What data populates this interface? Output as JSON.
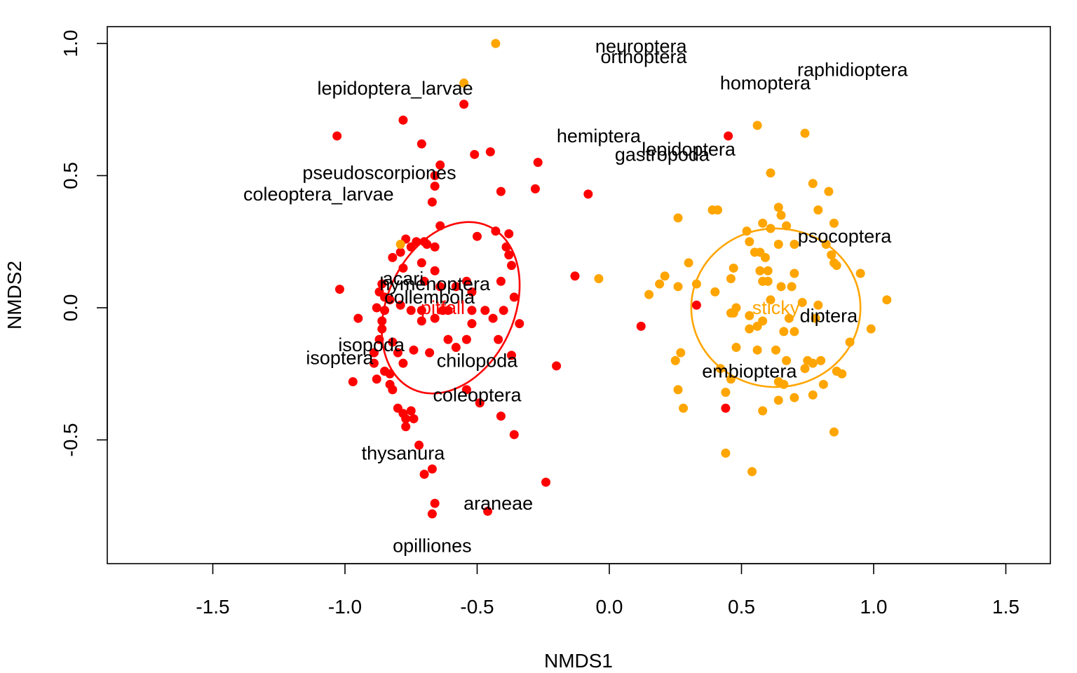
{
  "chart_data": {
    "type": "scatter",
    "xlabel": "NMDS1",
    "ylabel": "NMDS2",
    "xlim": [
      -1.9,
      1.7
    ],
    "ylim": [
      -0.97,
      1.07
    ],
    "x_ticks": [
      -1.5,
      -1.0,
      -0.5,
      0.0,
      0.5,
      1.0,
      1.5
    ],
    "x_tick_labels": [
      "-1.5",
      "-1.0",
      "-0.5",
      "0.0",
      "0.5",
      "1.0",
      "1.5"
    ],
    "y_ticks": [
      -0.5,
      0.0,
      0.5,
      1.0
    ],
    "y_tick_labels": [
      "-0.5",
      "0.0",
      "0.5",
      "1.0"
    ],
    "grid": false,
    "groups": [
      {
        "name": "pitfall",
        "color": "#ff0000",
        "centroid": [
          -0.7,
          0.0
        ],
        "ellipse": {
          "center": [
            -0.6,
            0.0
          ],
          "rx": 0.24,
          "ry": 0.34,
          "rotation_deg": 25
        }
      },
      {
        "name": "sticky",
        "color": "#ffa500",
        "centroid": [
          0.63,
          0.0
        ],
        "ellipse": {
          "center": [
            0.63,
            0.0
          ],
          "rx": 0.32,
          "ry": 0.3,
          "rotation_deg": 0
        }
      }
    ],
    "series": [
      {
        "name": "pitfall",
        "color": "#ff0000",
        "points": [
          [
            -1.03,
            0.65
          ],
          [
            -0.78,
            0.71
          ],
          [
            -0.55,
            0.77
          ],
          [
            -0.71,
            0.62
          ],
          [
            -0.51,
            0.58
          ],
          [
            -0.45,
            0.59
          ],
          [
            -0.64,
            0.54
          ],
          [
            -0.27,
            0.55
          ],
          [
            -0.66,
            0.5
          ],
          [
            -0.66,
            0.46
          ],
          [
            -0.41,
            0.44
          ],
          [
            -0.28,
            0.45
          ],
          [
            -0.08,
            0.43
          ],
          [
            -0.67,
            0.4
          ],
          [
            0.45,
            0.65
          ],
          [
            -1.02,
            0.07
          ],
          [
            -0.64,
            0.31
          ],
          [
            -0.43,
            0.29
          ],
          [
            -0.38,
            0.28
          ],
          [
            -0.77,
            0.26
          ],
          [
            -0.73,
            0.25
          ],
          [
            -0.7,
            0.25
          ],
          [
            -0.69,
            0.24
          ],
          [
            -0.5,
            0.27
          ],
          [
            -0.75,
            0.23
          ],
          [
            -0.66,
            0.23
          ],
          [
            -0.39,
            0.23
          ],
          [
            -0.79,
            0.21
          ],
          [
            -0.71,
            0.17
          ],
          [
            -0.38,
            0.2
          ],
          [
            -0.82,
            0.19
          ],
          [
            -0.66,
            0.14
          ],
          [
            -0.78,
            0.15
          ],
          [
            -0.37,
            0.16
          ],
          [
            -0.13,
            0.12
          ],
          [
            -0.86,
            0.09
          ],
          [
            -0.7,
            0.1
          ],
          [
            -0.64,
            0.08
          ],
          [
            -0.58,
            0.08
          ],
          [
            -0.54,
            0.1
          ],
          [
            -0.52,
            0.06
          ],
          [
            -0.41,
            0.1
          ],
          [
            -0.87,
            0.06
          ],
          [
            -0.85,
            0.04
          ],
          [
            -0.83,
            0.03
          ],
          [
            -0.79,
            0.01
          ],
          [
            -0.75,
            -0.01
          ],
          [
            -0.36,
            0.04
          ],
          [
            -0.88,
            0.0
          ],
          [
            -0.85,
            -0.01
          ],
          [
            -0.71,
            -0.01
          ],
          [
            -0.63,
            -0.01
          ],
          [
            -0.61,
            -0.01
          ],
          [
            -0.52,
            -0.01
          ],
          [
            -0.47,
            -0.01
          ],
          [
            -0.4,
            -0.01
          ],
          [
            -0.95,
            -0.04
          ],
          [
            -0.86,
            -0.05
          ],
          [
            -0.71,
            -0.05
          ],
          [
            -0.66,
            -0.04
          ],
          [
            -0.52,
            -0.06
          ],
          [
            -0.44,
            -0.04
          ],
          [
            -0.34,
            -0.06
          ],
          [
            -0.86,
            -0.08
          ],
          [
            0.12,
            -0.07
          ],
          [
            -0.87,
            -0.12
          ],
          [
            -0.82,
            -0.13
          ],
          [
            -0.61,
            -0.12
          ],
          [
            -0.54,
            -0.12
          ],
          [
            -0.42,
            -0.12
          ],
          [
            -0.89,
            -0.17
          ],
          [
            -0.8,
            -0.17
          ],
          [
            -0.74,
            -0.16
          ],
          [
            -0.68,
            -0.17
          ],
          [
            -0.58,
            -0.15
          ],
          [
            -0.37,
            -0.18
          ],
          [
            -0.89,
            -0.21
          ],
          [
            -0.78,
            -0.21
          ],
          [
            -0.85,
            -0.24
          ],
          [
            -0.83,
            -0.25
          ],
          [
            -0.2,
            -0.22
          ],
          [
            -0.97,
            -0.28
          ],
          [
            -0.88,
            -0.27
          ],
          [
            -0.83,
            -0.29
          ],
          [
            -0.82,
            -0.31
          ],
          [
            -0.54,
            -0.31
          ],
          [
            -0.49,
            -0.36
          ],
          [
            -0.8,
            -0.38
          ],
          [
            -0.78,
            -0.4
          ],
          [
            -0.77,
            -0.42
          ],
          [
            -0.75,
            -0.39
          ],
          [
            -0.74,
            -0.42
          ],
          [
            -0.41,
            -0.41
          ],
          [
            -0.77,
            -0.45
          ],
          [
            -0.36,
            -0.48
          ],
          [
            -0.72,
            -0.52
          ],
          [
            -0.67,
            -0.61
          ],
          [
            -0.7,
            -0.63
          ],
          [
            0.44,
            -0.38
          ],
          [
            -0.24,
            -0.66
          ],
          [
            -0.66,
            -0.74
          ],
          [
            -0.46,
            -0.77
          ],
          [
            -0.67,
            -0.78
          ],
          [
            0.33,
            0.01
          ]
        ]
      },
      {
        "name": "sticky",
        "color": "#ffa500",
        "points": [
          [
            -0.43,
            1.0
          ],
          [
            -0.55,
            0.85
          ],
          [
            -0.79,
            0.24
          ],
          [
            -0.04,
            0.11
          ],
          [
            0.56,
            0.69
          ],
          [
            0.74,
            0.66
          ],
          [
            0.61,
            0.51
          ],
          [
            0.77,
            0.47
          ],
          [
            0.83,
            0.44
          ],
          [
            0.39,
            0.37
          ],
          [
            0.41,
            0.37
          ],
          [
            0.64,
            0.38
          ],
          [
            0.79,
            0.37
          ],
          [
            0.65,
            0.35
          ],
          [
            0.26,
            0.34
          ],
          [
            0.58,
            0.32
          ],
          [
            0.85,
            0.32
          ],
          [
            0.52,
            0.29
          ],
          [
            0.61,
            0.3
          ],
          [
            0.67,
            0.31
          ],
          [
            0.82,
            0.24
          ],
          [
            0.53,
            0.25
          ],
          [
            0.57,
            0.21
          ],
          [
            0.64,
            0.24
          ],
          [
            0.7,
            0.24
          ],
          [
            0.84,
            0.2
          ],
          [
            0.3,
            0.17
          ],
          [
            0.55,
            0.21
          ],
          [
            0.59,
            0.19
          ],
          [
            0.6,
            0.14
          ],
          [
            0.85,
            0.17
          ],
          [
            0.86,
            0.16
          ],
          [
            0.95,
            0.13
          ],
          [
            0.21,
            0.12
          ],
          [
            0.47,
            0.15
          ],
          [
            0.57,
            0.14
          ],
          [
            0.7,
            0.13
          ],
          [
            0.46,
            0.11
          ],
          [
            0.58,
            0.1
          ],
          [
            0.65,
            0.08
          ],
          [
            0.19,
            0.09
          ],
          [
            0.26,
            0.08
          ],
          [
            0.33,
            0.09
          ],
          [
            0.6,
            0.1
          ],
          [
            0.69,
            0.08
          ],
          [
            0.4,
            0.06
          ],
          [
            0.15,
            0.05
          ],
          [
            1.05,
            0.03
          ],
          [
            0.48,
            0.0
          ],
          [
            0.61,
            0.03
          ],
          [
            0.46,
            -0.02
          ],
          [
            0.47,
            -0.02
          ],
          [
            0.73,
            0.02
          ],
          [
            0.79,
            0.01
          ],
          [
            0.53,
            -0.03
          ],
          [
            0.58,
            -0.05
          ],
          [
            0.68,
            -0.04
          ],
          [
            0.78,
            -0.04
          ],
          [
            0.56,
            -0.07
          ],
          [
            0.99,
            -0.08
          ],
          [
            0.66,
            -0.09
          ],
          [
            0.53,
            -0.08
          ],
          [
            0.7,
            -0.09
          ],
          [
            0.91,
            -0.13
          ],
          [
            0.48,
            -0.15
          ],
          [
            0.56,
            -0.16
          ],
          [
            0.63,
            -0.16
          ],
          [
            0.27,
            -0.17
          ],
          [
            0.67,
            -0.2
          ],
          [
            0.75,
            -0.2
          ],
          [
            0.77,
            -0.21
          ],
          [
            0.8,
            -0.2
          ],
          [
            0.25,
            -0.2
          ],
          [
            0.42,
            -0.23
          ],
          [
            0.74,
            -0.23
          ],
          [
            0.86,
            -0.24
          ],
          [
            0.88,
            -0.25
          ],
          [
            0.46,
            -0.27
          ],
          [
            0.64,
            -0.28
          ],
          [
            0.66,
            -0.29
          ],
          [
            0.81,
            -0.29
          ],
          [
            0.26,
            -0.31
          ],
          [
            0.44,
            -0.32
          ],
          [
            0.7,
            -0.34
          ],
          [
            0.77,
            -0.33
          ],
          [
            0.64,
            -0.35
          ],
          [
            0.28,
            -0.38
          ],
          [
            0.58,
            -0.39
          ],
          [
            0.85,
            -0.47
          ],
          [
            0.44,
            -0.55
          ],
          [
            0.54,
            -0.62
          ]
        ]
      }
    ],
    "labels": [
      {
        "text": "neuroptera",
        "x": 0.12,
        "y": 0.99,
        "color": "#000000"
      },
      {
        "text": "orthoptera",
        "x": 0.13,
        "y": 0.95,
        "color": "#000000"
      },
      {
        "text": "raphidioptera",
        "x": 0.92,
        "y": 0.9,
        "color": "#000000"
      },
      {
        "text": "lepidoptera_larvae",
        "x": -0.81,
        "y": 0.83,
        "color": "#000000"
      },
      {
        "text": "homoptera",
        "x": 0.59,
        "y": 0.85,
        "color": "#000000"
      },
      {
        "text": "hemiptera",
        "x": -0.04,
        "y": 0.65,
        "color": "#000000"
      },
      {
        "text": "lepidoptera",
        "x": 0.3,
        "y": 0.6,
        "color": "#000000"
      },
      {
        "text": "gastropoda",
        "x": 0.2,
        "y": 0.58,
        "color": "#000000"
      },
      {
        "text": "pseudoscorpiones",
        "x": -0.87,
        "y": 0.51,
        "color": "#000000"
      },
      {
        "text": "coleoptera_larvae",
        "x": -1.1,
        "y": 0.43,
        "color": "#000000"
      },
      {
        "text": "psocoptera",
        "x": 0.89,
        "y": 0.27,
        "color": "#000000"
      },
      {
        "text": "acari",
        "x": -0.78,
        "y": 0.11,
        "color": "#000000"
      },
      {
        "text": "hymenoptera",
        "x": -0.66,
        "y": 0.09,
        "color": "#000000"
      },
      {
        "text": "collembola",
        "x": -0.68,
        "y": 0.04,
        "color": "#000000"
      },
      {
        "text": "pitfall",
        "x": -0.63,
        "y": 0.0,
        "color": "#ff0000"
      },
      {
        "text": "sticky",
        "x": 0.63,
        "y": 0.0,
        "color": "#ffa500"
      },
      {
        "text": "diptera",
        "x": 0.83,
        "y": -0.03,
        "color": "#000000"
      },
      {
        "text": "isopoda",
        "x": -0.9,
        "y": -0.14,
        "color": "#000000"
      },
      {
        "text": "isoptera",
        "x": -1.02,
        "y": -0.19,
        "color": "#000000"
      },
      {
        "text": "chilopoda",
        "x": -0.5,
        "y": -0.2,
        "color": "#000000"
      },
      {
        "text": "embioptera",
        "x": 0.53,
        "y": -0.24,
        "color": "#000000"
      },
      {
        "text": "coleoptera",
        "x": -0.5,
        "y": -0.33,
        "color": "#000000"
      },
      {
        "text": "thysanura",
        "x": -0.78,
        "y": -0.55,
        "color": "#000000"
      },
      {
        "text": "araneae",
        "x": -0.42,
        "y": -0.74,
        "color": "#000000"
      },
      {
        "text": "opilliones",
        "x": -0.67,
        "y": -0.9,
        "color": "#000000"
      }
    ]
  }
}
